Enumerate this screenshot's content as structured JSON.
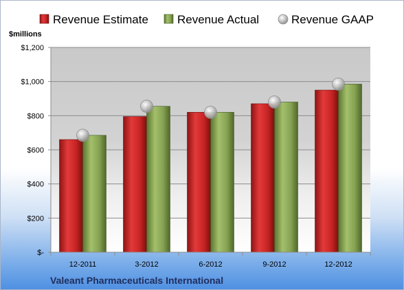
{
  "chart_data": {
    "type": "bar",
    "title": "",
    "unit_label": "$millions",
    "company": "Valeant Pharmaceuticals International",
    "categories": [
      "12-2011",
      "3-2012",
      "6-2012",
      "9-2012",
      "12-2012"
    ],
    "series": [
      {
        "name": "Revenue Estimate",
        "type": "bar",
        "color": "#d42a2a",
        "values": [
          660,
          795,
          820,
          870,
          950
        ]
      },
      {
        "name": "Revenue Actual",
        "type": "bar",
        "color": "#8cab5a",
        "values": [
          685,
          855,
          820,
          880,
          985
        ]
      },
      {
        "name": "Revenue GAAP",
        "type": "marker",
        "color": "#bfbfbf",
        "values": [
          685,
          855,
          820,
          880,
          985
        ]
      }
    ],
    "y_ticks": [
      "$1,200",
      "$1,000",
      "$800",
      "$600",
      "$400",
      "$200",
      "$-"
    ],
    "ylim": [
      0,
      1200
    ],
    "grid": true,
    "legend": "top"
  }
}
